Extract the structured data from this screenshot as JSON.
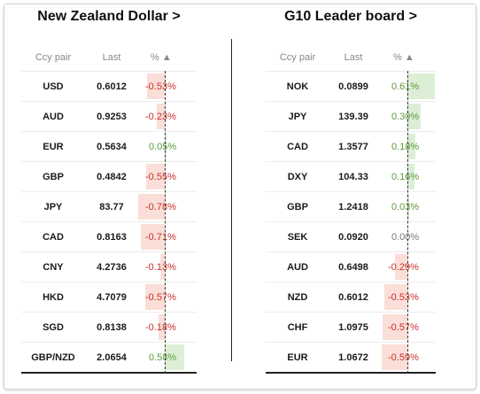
{
  "left_panel": {
    "title": "New Zealand Dollar >",
    "headers": {
      "pair": "Ccy pair",
      "last": "Last",
      "pct": "% ▲"
    },
    "rows": [
      {
        "pair": "USD",
        "last": "0.6012",
        "pct": "-0.53%",
        "value": -0.53
      },
      {
        "pair": "AUD",
        "last": "0.9253",
        "pct": "-0.23%",
        "value": -0.23
      },
      {
        "pair": "EUR",
        "last": "0.5634",
        "pct": "0.05%",
        "value": 0.05
      },
      {
        "pair": "GBP",
        "last": "0.4842",
        "pct": "-0.55%",
        "value": -0.55
      },
      {
        "pair": "JPY",
        "last": "83.77",
        "pct": "-0.78%",
        "value": -0.78
      },
      {
        "pair": "CAD",
        "last": "0.8163",
        "pct": "-0.71%",
        "value": -0.71
      },
      {
        "pair": "CNY",
        "last": "4.2736",
        "pct": "-0.13%",
        "value": -0.13
      },
      {
        "pair": "HKD",
        "last": "4.7079",
        "pct": "-0.57%",
        "value": -0.57
      },
      {
        "pair": "SGD",
        "last": "0.8138",
        "pct": "-0.18%",
        "value": -0.18
      },
      {
        "pair": "GBP/NZD",
        "last": "2.0654",
        "pct": "0.58%",
        "value": 0.58
      }
    ]
  },
  "right_panel": {
    "title": "G10 Leader board >",
    "headers": {
      "pair": "Ccy pair",
      "last": "Last",
      "pct": "% ▲"
    },
    "rows": [
      {
        "pair": "NOK",
        "last": "0.0899",
        "pct": "0.61%",
        "value": 0.61
      },
      {
        "pair": "JPY",
        "last": "139.39",
        "pct": "0.30%",
        "value": 0.3
      },
      {
        "pair": "CAD",
        "last": "1.3577",
        "pct": "0.18%",
        "value": 0.18
      },
      {
        "pair": "DXY",
        "last": "104.33",
        "pct": "0.16%",
        "value": 0.16
      },
      {
        "pair": "GBP",
        "last": "1.2418",
        "pct": "0.03%",
        "value": 0.03
      },
      {
        "pair": "SEK",
        "last": "0.0920",
        "pct": "0.00%",
        "value": 0.0
      },
      {
        "pair": "AUD",
        "last": "0.6498",
        "pct": "-0.29%",
        "value": -0.29
      },
      {
        "pair": "NZD",
        "last": "0.6012",
        "pct": "-0.53%",
        "value": -0.53
      },
      {
        "pair": "CHF",
        "last": "1.0975",
        "pct": "-0.57%",
        "value": -0.57
      },
      {
        "pair": "EUR",
        "last": "1.0672",
        "pct": "-0.59%",
        "value": -0.59
      }
    ]
  },
  "colors": {
    "negative_text": "#c9302c",
    "positive_text": "#5b9a3c",
    "negative_bar": "#fbded8",
    "positive_bar": "#dcefd6"
  }
}
